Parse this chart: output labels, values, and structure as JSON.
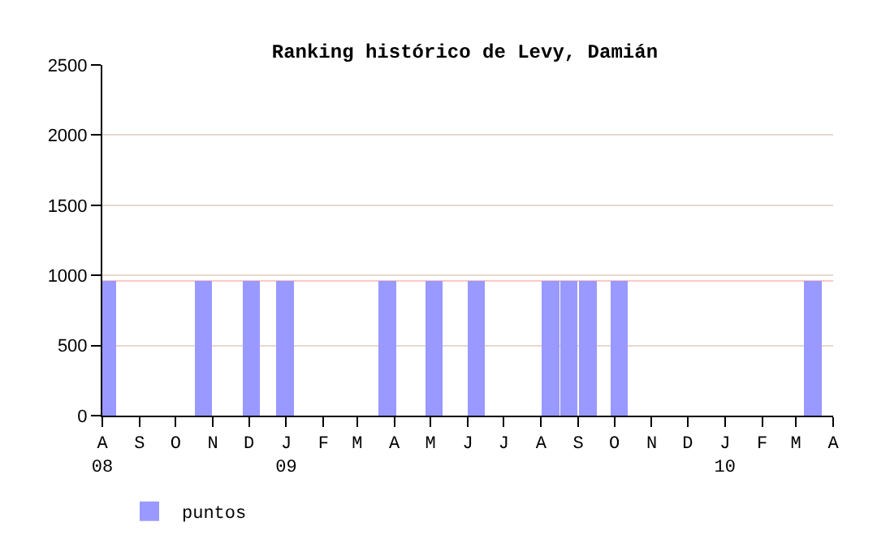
{
  "chart_data": {
    "type": "bar",
    "title": "Ranking histórico de Levy, Damián",
    "x": [
      "2008-08-05",
      "2008-10-24",
      "2008-12-03",
      "2008-12-31",
      "2009-03-26",
      "2009-05-04",
      "2009-06-08",
      "2009-08-09",
      "2009-08-24",
      "2009-09-09",
      "2009-10-05",
      "2010-03-15"
    ],
    "series": [
      {
        "name": "puntos",
        "color": "#9999ff",
        "values": [
          960,
          960,
          960,
          960,
          960,
          960,
          960,
          960,
          960,
          960,
          960,
          960
        ]
      }
    ],
    "xlim": [
      "2008-08-01",
      "2010-04-01"
    ],
    "xticks": [
      {
        "value": "2008-08-01",
        "label": "A\n08"
      },
      {
        "value": "2008-09-01",
        "label": "S"
      },
      {
        "value": "2008-10-01",
        "label": "O"
      },
      {
        "value": "2008-11-01",
        "label": "N"
      },
      {
        "value": "2008-12-01",
        "label": "D"
      },
      {
        "value": "2009-01-01",
        "label": "J\n09"
      },
      {
        "value": "2009-02-01",
        "label": "F"
      },
      {
        "value": "2009-03-01",
        "label": "M"
      },
      {
        "value": "2009-04-01",
        "label": "A"
      },
      {
        "value": "2009-05-01",
        "label": "M"
      },
      {
        "value": "2009-06-01",
        "label": "J"
      },
      {
        "value": "2009-07-01",
        "label": "J"
      },
      {
        "value": "2009-08-01",
        "label": "A"
      },
      {
        "value": "2009-09-01",
        "label": "S"
      },
      {
        "value": "2009-10-01",
        "label": "O"
      },
      {
        "value": "2009-11-01",
        "label": "N"
      },
      {
        "value": "2009-12-01",
        "label": "D"
      },
      {
        "value": "2010-01-01",
        "label": "J\n10"
      },
      {
        "value": "2010-02-01",
        "label": "F"
      },
      {
        "value": "2010-03-01",
        "label": "M"
      },
      {
        "value": "2010-04-01",
        "label": "A"
      }
    ],
    "ylim": [
      0,
      2500
    ],
    "yticks": [
      0,
      500,
      1000,
      1500,
      2000,
      2500
    ],
    "ref_lines": [
      {
        "axis": "y",
        "value": 960,
        "color": "#ffc8c8"
      }
    ],
    "grid": "y",
    "legend": "bottom left"
  }
}
